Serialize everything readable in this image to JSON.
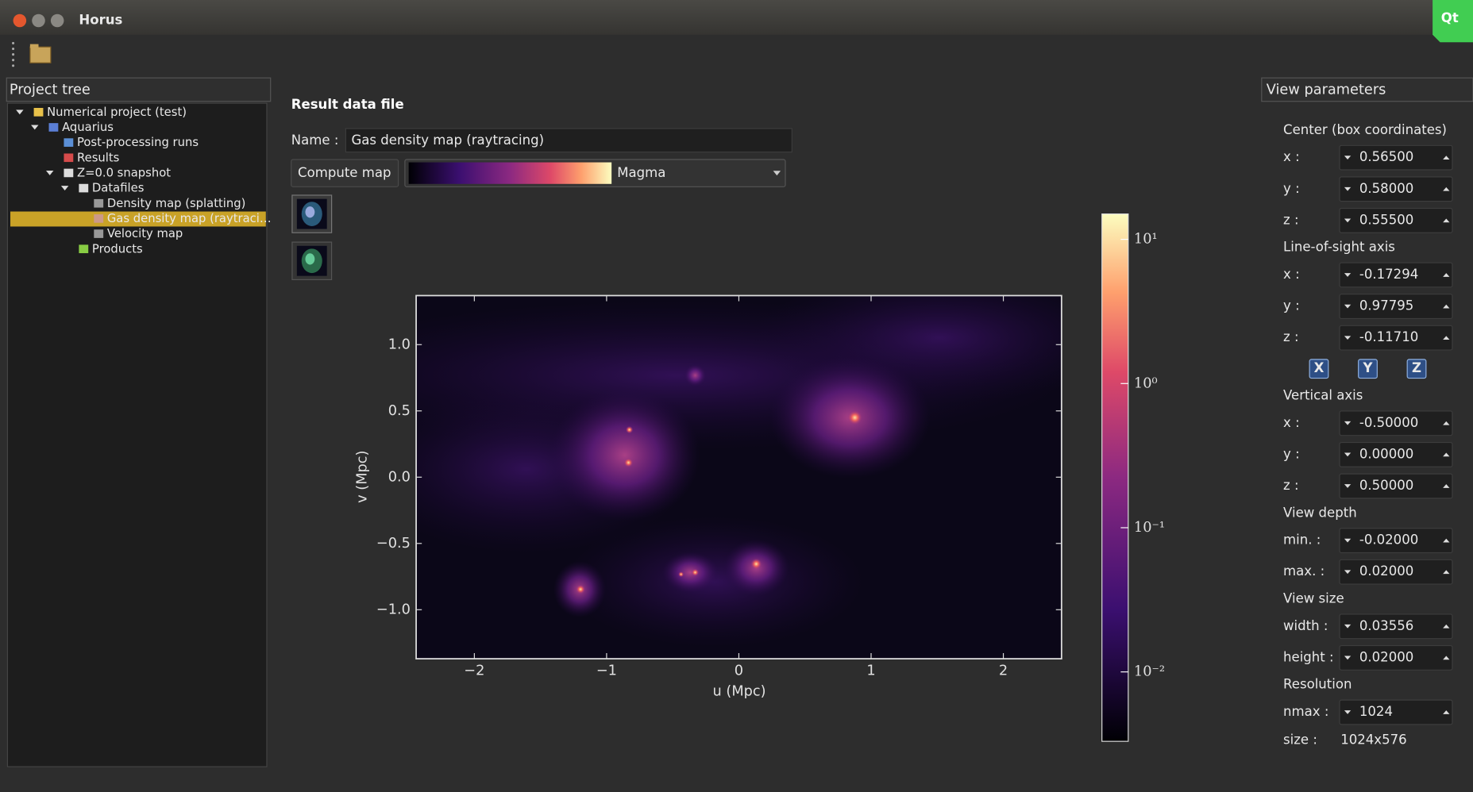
{
  "window": {
    "title": "Horus",
    "logo": "Qt"
  },
  "project_tree": {
    "title": "Project tree",
    "items": [
      "Numerical project (test)",
      "Aquarius",
      "Post-processing runs",
      "Results",
      "Z=0.0 snapshot",
      "Datafiles",
      "Density map (splatting)",
      "Gas density map (raytraci…",
      "Velocity map",
      "Products"
    ]
  },
  "result": {
    "heading": "Result data file",
    "name_label": "Name :",
    "name_value": "Gas density map (raytracing)",
    "compute_button": "Compute map",
    "colormap": "Magma"
  },
  "chart_data": {
    "type": "image",
    "xlabel": "u (Mpc)",
    "ylabel": "v (Mpc)",
    "xlim": [
      -2.44,
      2.44
    ],
    "ylim": [
      -1.37,
      1.37
    ],
    "xticks": [
      {
        "value": -2,
        "label": "−2"
      },
      {
        "value": -1,
        "label": "−1"
      },
      0,
      1,
      2
    ],
    "yticks": [
      {
        "value": -1,
        "label": "−1.0"
      },
      {
        "value": -0.5,
        "label": "−0.5"
      },
      {
        "value": 0,
        "label": "0.0"
      },
      0.5,
      {
        "value": 1,
        "label": "1.0"
      }
    ],
    "colorbar": {
      "log": true,
      "lim": [
        0.0033,
        15
      ],
      "ticks": [
        {
          "value": 0.01,
          "label": "10⁻²"
        },
        {
          "value": 0.1,
          "label": "10⁻¹"
        },
        {
          "value": 1,
          "label": "10⁰"
        },
        {
          "value": 10,
          "label": "10¹"
        }
      ]
    }
  },
  "view_parameters": {
    "title": "View parameters",
    "sections": [
      {
        "title": "Center (box coordinates)",
        "fields": [
          {
            "label": "x :",
            "value": "0.56500"
          },
          {
            "label": "y :",
            "value": "0.58000"
          },
          {
            "label": "z :",
            "value": "0.55500"
          }
        ]
      },
      {
        "title": "Line-of-sight axis",
        "fields": [
          {
            "label": "x :",
            "value": "-0.17294"
          },
          {
            "label": "y :",
            "value": "0.97795"
          },
          {
            "label": "z :",
            "value": "-0.11710"
          }
        ],
        "buttons": [
          "X",
          "Y",
          "Z"
        ]
      },
      {
        "title": "Vertical axis",
        "fields": [
          {
            "label": "x :",
            "value": "-0.50000"
          },
          {
            "label": "y :",
            "value": "0.00000"
          },
          {
            "label": "z :",
            "value": "0.50000"
          }
        ]
      },
      {
        "title": "View depth",
        "fields": [
          {
            "label": "min. :",
            "value": "-0.02000"
          },
          {
            "label": "max. :",
            "value": "0.02000"
          }
        ]
      },
      {
        "title": "View size",
        "fields": [
          {
            "label": "width :",
            "value": "0.03556"
          },
          {
            "label": "height :",
            "value": "0.02000"
          }
        ]
      },
      {
        "title": "Resolution",
        "fields": [
          {
            "label": "nmax :",
            "value": "1024"
          }
        ],
        "size": {
          "label": "size :",
          "value": "1024x576"
        }
      }
    ]
  }
}
